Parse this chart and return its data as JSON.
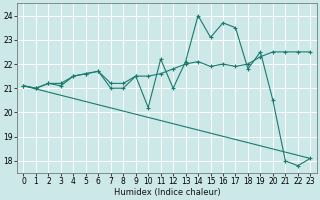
{
  "xlabel": "Humidex (Indice chaleur)",
  "bg_color": "#cce8e8",
  "grid_color": "#ffffff",
  "line_color": "#1a7a6e",
  "xlim": [
    -0.5,
    23.5
  ],
  "ylim": [
    17.5,
    24.5
  ],
  "xticks": [
    0,
    1,
    2,
    3,
    4,
    5,
    6,
    7,
    8,
    9,
    10,
    11,
    12,
    13,
    14,
    15,
    16,
    17,
    18,
    19,
    20,
    21,
    22,
    23
  ],
  "yticks": [
    18,
    19,
    20,
    21,
    22,
    23,
    24
  ],
  "series": [
    {
      "x": [
        0,
        1,
        2,
        3,
        4,
        5,
        6,
        7,
        8,
        9,
        10,
        11,
        12,
        13,
        14,
        15,
        16,
        17,
        18,
        19,
        20,
        21,
        22,
        23
      ],
      "y": [
        21.1,
        21.0,
        21.2,
        21.1,
        21.5,
        21.6,
        21.7,
        21.0,
        21.0,
        21.5,
        20.2,
        22.2,
        21.0,
        22.1,
        24.0,
        23.1,
        23.7,
        23.5,
        21.8,
        22.5,
        20.5,
        18.0,
        17.8,
        18.1
      ],
      "markers": true
    },
    {
      "x": [
        0,
        1,
        2,
        3,
        4,
        5,
        6,
        7,
        8,
        9,
        10,
        11,
        12,
        13,
        14,
        15,
        16,
        17,
        18,
        19,
        20,
        21,
        22,
        23
      ],
      "y": [
        21.1,
        21.0,
        21.2,
        21.2,
        21.5,
        21.6,
        21.7,
        21.2,
        21.2,
        21.5,
        21.5,
        21.6,
        21.8,
        22.0,
        22.1,
        21.9,
        22.0,
        21.9,
        22.0,
        22.3,
        22.5,
        22.5,
        22.5,
        22.5
      ],
      "markers": true
    },
    {
      "x": [
        0,
        23
      ],
      "y": [
        21.1,
        18.1
      ],
      "markers": false
    }
  ]
}
